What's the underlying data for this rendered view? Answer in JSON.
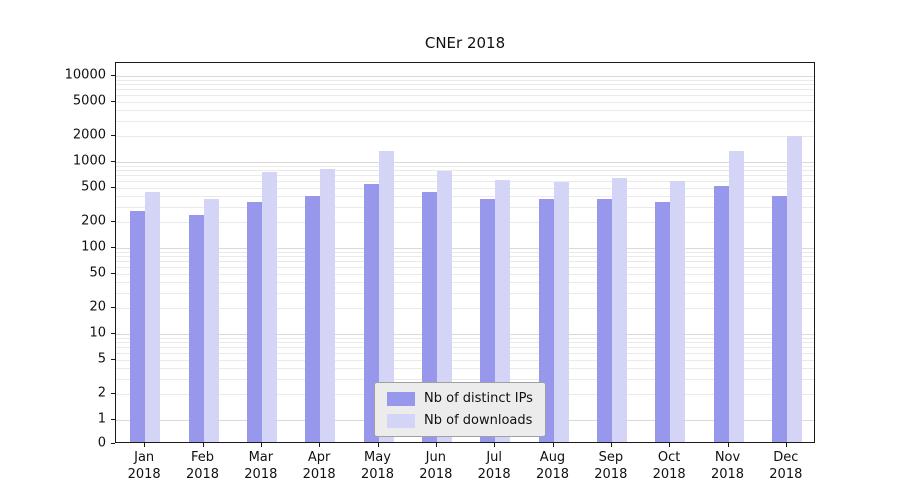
{
  "chart_data": {
    "type": "bar",
    "title": "CNEr 2018",
    "xlabel": "",
    "ylabel": "",
    "yscale": "symlog",
    "ylim": [
      0,
      20000
    ],
    "yticks": [
      0,
      1,
      2,
      5,
      10,
      20,
      50,
      100,
      200,
      500,
      1000,
      2000,
      5000,
      10000
    ],
    "grid": "horizontal major and minor log gridlines",
    "legend_position": "lower center",
    "categories": [
      [
        "Jan",
        "2018"
      ],
      [
        "Feb",
        "2018"
      ],
      [
        "Mar",
        "2018"
      ],
      [
        "Apr",
        "2018"
      ],
      [
        "May",
        "2018"
      ],
      [
        "Jun",
        "2018"
      ],
      [
        "Jul",
        "2018"
      ],
      [
        "Aug",
        "2018"
      ],
      [
        "Sep",
        "2018"
      ],
      [
        "Oct",
        "2018"
      ],
      [
        "Nov",
        "2018"
      ],
      [
        "Dec",
        "2018"
      ]
    ],
    "series": [
      {
        "name": "Nb of distinct IPs",
        "color": "#9797ec",
        "values": [
          255,
          230,
          325,
          380,
          525,
          425,
          350,
          350,
          355,
          325,
          500,
          380
        ]
      },
      {
        "name": "Nb of downloads",
        "color": "#d4d4f7",
        "values": [
          425,
          350,
          725,
          785,
          1270,
          745,
          585,
          555,
          620,
          570,
          1270,
          1900
        ]
      }
    ]
  }
}
